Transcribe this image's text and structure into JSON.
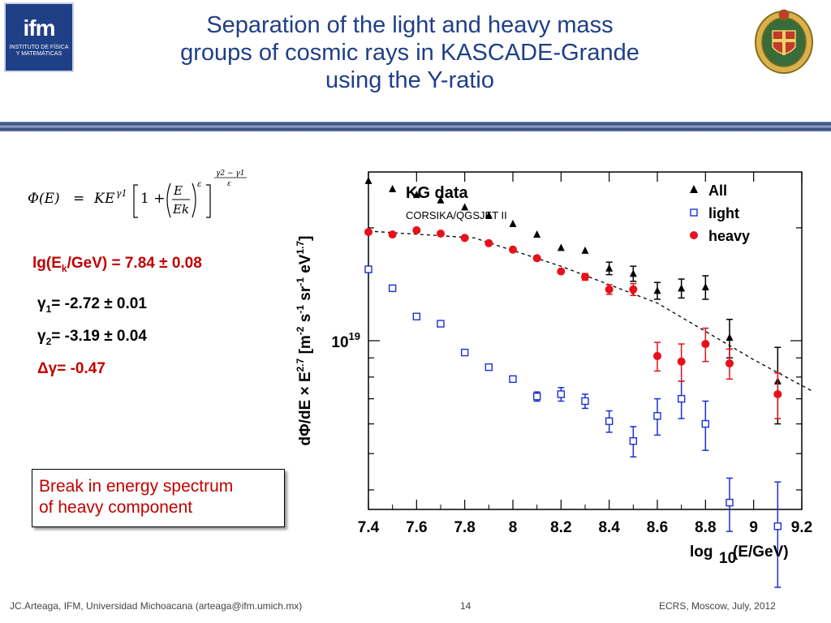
{
  "header": {
    "title_line1": "Separation of the light and heavy mass",
    "title_line2": "groups of cosmic rays in KASCADE-Grande",
    "title_line3": "using the Y-ratio",
    "logo_text": "ifm",
    "logo_subtext1": "Instituto de Física",
    "logo_subtext2": "y Matemáticas"
  },
  "formula": {
    "lhs": "Φ(E)",
    "equals": "=",
    "k": "K",
    "e": "E",
    "gamma1": "γ1",
    "one_plus": "1 +",
    "frac_num": "E",
    "frac_den": "Ek",
    "eps": "ε",
    "exp_num": "γ2 − γ1",
    "exp_den": "ε"
  },
  "params": {
    "ek": "lg(Ek/GeV) = 7.84 ± 0.08",
    "ek_prefix": "lg(E",
    "ek_sub": "k",
    "ek_suffix": "/GeV) = 7.84 ± 0.08",
    "g1_sym": "γ",
    "g1_sub": "1",
    "g1_val": "= -2.72 ± 0.01",
    "g2_sym": "γ",
    "g2_sub": "2",
    "g2_val": "= -3.19 ± 0.04",
    "dg": "Δγ= -0.47"
  },
  "note_box": {
    "line1": "Break in energy spectrum",
    "line2": "of heavy component"
  },
  "footer": {
    "left": "JC.Arteaga, IFM,  Universidad Michoacana  (arteaga@ifm.umich.mx)",
    "page": "14",
    "right": "ECRS, Moscow, July, 2012"
  },
  "colors": {
    "title": "#1f3f86",
    "red_text": "#c00000",
    "heavy": "#e8101a",
    "light": "#1c2fd6",
    "all": "#000000"
  },
  "chart_data": {
    "type": "scatter",
    "title": "KG data",
    "subtitle": "CORSIKA/QGSJET II",
    "xlabel": "log10(E/GeV)",
    "ylabel": "dΦ/dE × E^2.7 [m^-2 s^-1 sr^-1 eV^1.7]",
    "xlim": [
      7.4,
      9.2
    ],
    "ylim_log10": [
      18.55,
      19.45
    ],
    "x_ticks": [
      "7.4",
      "7.6",
      "7.8",
      "8",
      "8.2",
      "8.4",
      "8.6",
      "8.8",
      "9",
      "9.2"
    ],
    "y_ticks": [
      {
        "label_base": "10",
        "label_exp": "20",
        "value": 1e+20
      },
      {
        "label_base": "10",
        "label_exp": "19",
        "value": 1e+19
      }
    ],
    "legend_position": "top-right",
    "series": [
      {
        "name": "All",
        "marker": "triangle",
        "color": "#000000",
        "x": [
          7.4,
          7.5,
          7.6,
          7.7,
          7.8,
          7.9,
          8.0,
          8.1,
          8.2,
          8.3,
          8.4,
          8.5,
          8.6,
          8.7,
          8.8,
          8.9,
          9.1
        ],
        "y": [
          2.67e+19,
          2.54e+19,
          2.45e+19,
          2.37e+19,
          2.27e+19,
          2.16e+19,
          2.05e+19,
          1.92e+19,
          1.77e+19,
          1.74e+19,
          1.56e+19,
          1.51e+19,
          1.36e+19,
          1.38e+19,
          1.39e+19,
          1.02e+19,
          7.8e+18
        ],
        "err": [
          0,
          0,
          0,
          0,
          0,
          0,
          0,
          0,
          0,
          0,
          6e+17,
          7e+17,
          7e+17,
          8e+17,
          1e+18,
          1.2e+18,
          1.8e+18
        ]
      },
      {
        "name": "light",
        "marker": "square-open",
        "color": "#1c2fd6",
        "x": [
          7.4,
          7.5,
          7.6,
          7.7,
          7.8,
          7.9,
          8.0,
          8.1,
          8.2,
          8.3,
          8.4,
          8.5,
          8.6,
          8.7,
          8.8,
          8.9,
          9.1
        ],
        "y": [
          1.55e+19,
          1.38e+19,
          1.16e+19,
          1.11e+19,
          9.3e+18,
          8.5e+18,
          7.9e+18,
          7.1e+18,
          7.2e+18,
          6.9e+18,
          6.1e+18,
          5.4e+18,
          6.3e+18,
          7e+18,
          6e+18,
          3.7e+18,
          3.2e+18
        ],
        "err": [
          0,
          0,
          0,
          0,
          0,
          0,
          0,
          2e+17,
          3e+17,
          3e+17,
          4e+17,
          5e+17,
          7e+17,
          8e+17,
          9e+17,
          6e+17,
          1e+18
        ]
      },
      {
        "name": "heavy",
        "marker": "circle",
        "color": "#e8101a",
        "x": [
          7.4,
          7.5,
          7.6,
          7.7,
          7.8,
          7.9,
          8.0,
          8.1,
          8.2,
          8.3,
          8.4,
          8.5,
          8.6,
          8.7,
          8.8,
          8.9,
          9.1
        ],
        "y": [
          1.95e+19,
          1.92e+19,
          1.97e+19,
          1.93e+19,
          1.88e+19,
          1.82e+19,
          1.75e+19,
          1.66e+19,
          1.53e+19,
          1.48e+19,
          1.37e+19,
          1.37e+19,
          9.1e+18,
          8.8e+18,
          9.8e+18,
          8.7e+18,
          7.2e+18
        ],
        "err": [
          0,
          0,
          0,
          0,
          0,
          0,
          0,
          0,
          0,
          3e+17,
          4e+17,
          5e+17,
          8e+17,
          1e+18,
          1e+18,
          8e+17,
          1e+18
        ]
      }
    ],
    "fit_line": {
      "x": [
        7.4,
        7.84,
        8.2,
        8.6,
        9.0,
        9.25
      ],
      "y": [
        1.96e+19,
        1.88e+19,
        1.58e+19,
        1.26e+19,
        8.9e+18,
        7.3e+18
      ]
    }
  }
}
